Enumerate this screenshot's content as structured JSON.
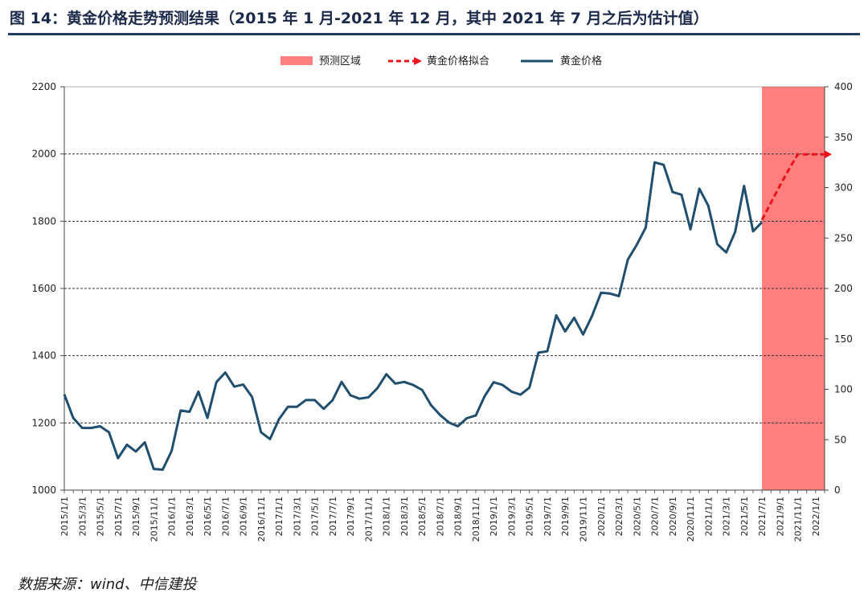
{
  "figure": {
    "title": "图 14：黄金价格走势预测结果（2015 年 1 月-2021 年 12 月，其中 2021 年 7 月之后为估计值）",
    "source": "数据来源：wind、中信建投"
  },
  "colors": {
    "gold_line": "#1f4e6e",
    "fit_line": "#e8141c",
    "forecast_fill": "#ff7f7f",
    "title_rule": "#1f3864"
  },
  "chart_data": {
    "type": "line",
    "legend": [
      "预测区域",
      "黄金价格拟合",
      "黄金价格"
    ],
    "legend_placement": "top-center",
    "grid": true,
    "ylim": [
      1000,
      2200
    ],
    "y2lim": [
      0,
      400
    ],
    "y_ticks": [
      1000,
      1200,
      1400,
      1600,
      1800,
      2000,
      2200
    ],
    "y2_ticks": [
      0,
      50,
      100,
      150,
      200,
      250,
      300,
      350,
      400
    ],
    "x_tick_labels": [
      "2015/1/1",
      "2015/3/1",
      "2015/5/1",
      "2015/7/1",
      "2015/9/1",
      "2015/11/1",
      "2016/1/1",
      "2016/3/1",
      "2016/5/1",
      "2016/7/1",
      "2016/9/1",
      "2016/11/1",
      "2017/1/1",
      "2017/3/1",
      "2017/5/1",
      "2017/7/1",
      "2017/9/1",
      "2017/11/1",
      "2018/1/1",
      "2018/3/1",
      "2018/5/1",
      "2018/7/1",
      "2018/9/1",
      "2018/11/1",
      "2019/1/1",
      "2019/3/1",
      "2019/5/1",
      "2019/7/1",
      "2019/9/1",
      "2019/11/1",
      "2020/1/1",
      "2020/3/1",
      "2020/5/1",
      "2020/7/1",
      "2020/9/1",
      "2020/11/1",
      "2021/1/1",
      "2021/3/1",
      "2021/5/1",
      "2021/7/1",
      "2021/9/1",
      "2021/11/1",
      "2022/1/1"
    ],
    "forecast_region": {
      "start": "2021/7/1",
      "end": "2022/2/1"
    },
    "series": [
      {
        "name": "黄金价格",
        "x": [
          "2015/1",
          "2015/2",
          "2015/3",
          "2015/4",
          "2015/5",
          "2015/6",
          "2015/7",
          "2015/8",
          "2015/9",
          "2015/10",
          "2015/11",
          "2015/12",
          "2016/1",
          "2016/2",
          "2016/3",
          "2016/4",
          "2016/5",
          "2016/6",
          "2016/7",
          "2016/8",
          "2016/9",
          "2016/10",
          "2016/11",
          "2016/12",
          "2017/1",
          "2017/2",
          "2017/3",
          "2017/4",
          "2017/5",
          "2017/6",
          "2017/7",
          "2017/8",
          "2017/9",
          "2017/10",
          "2017/11",
          "2017/12",
          "2018/1",
          "2018/2",
          "2018/3",
          "2018/4",
          "2018/5",
          "2018/6",
          "2018/7",
          "2018/8",
          "2018/9",
          "2018/10",
          "2018/11",
          "2018/12",
          "2019/1",
          "2019/2",
          "2019/3",
          "2019/4",
          "2019/5",
          "2019/6",
          "2019/7",
          "2019/8",
          "2019/9",
          "2019/10",
          "2019/11",
          "2019/12",
          "2020/1",
          "2020/2",
          "2020/3",
          "2020/4",
          "2020/5",
          "2020/6",
          "2020/7",
          "2020/8",
          "2020/9",
          "2020/10",
          "2020/11",
          "2020/12",
          "2021/1",
          "2021/2",
          "2021/3",
          "2021/4",
          "2021/5",
          "2021/6",
          "2021/7"
        ],
        "values": [
          1285,
          1215,
          1185,
          1185,
          1190,
          1172,
          1095,
          1135,
          1115,
          1142,
          1063,
          1061,
          1117,
          1237,
          1233,
          1293,
          1215,
          1321,
          1350,
          1308,
          1314,
          1277,
          1172,
          1152,
          1211,
          1248,
          1248,
          1268,
          1268,
          1242,
          1268,
          1322,
          1282,
          1272,
          1276,
          1303,
          1345,
          1317,
          1322,
          1313,
          1298,
          1253,
          1224,
          1201,
          1190,
          1214,
          1222,
          1280,
          1321,
          1313,
          1293,
          1284,
          1305,
          1409,
          1413,
          1520,
          1472,
          1513,
          1463,
          1518,
          1587,
          1585,
          1577,
          1686,
          1730,
          1781,
          1975,
          1968,
          1887,
          1879,
          1776,
          1897,
          1846,
          1732,
          1707,
          1768,
          1905,
          1770,
          1797
        ]
      },
      {
        "name": "黄金价格拟合",
        "x": [
          "2021/7",
          "2021/8",
          "2021/9",
          "2021/10",
          "2021/11",
          "2021/12",
          "2022/1",
          "2022/2"
        ],
        "values": [
          268,
          285,
          302,
          318,
          333,
          333,
          333,
          333
        ]
      }
    ]
  }
}
